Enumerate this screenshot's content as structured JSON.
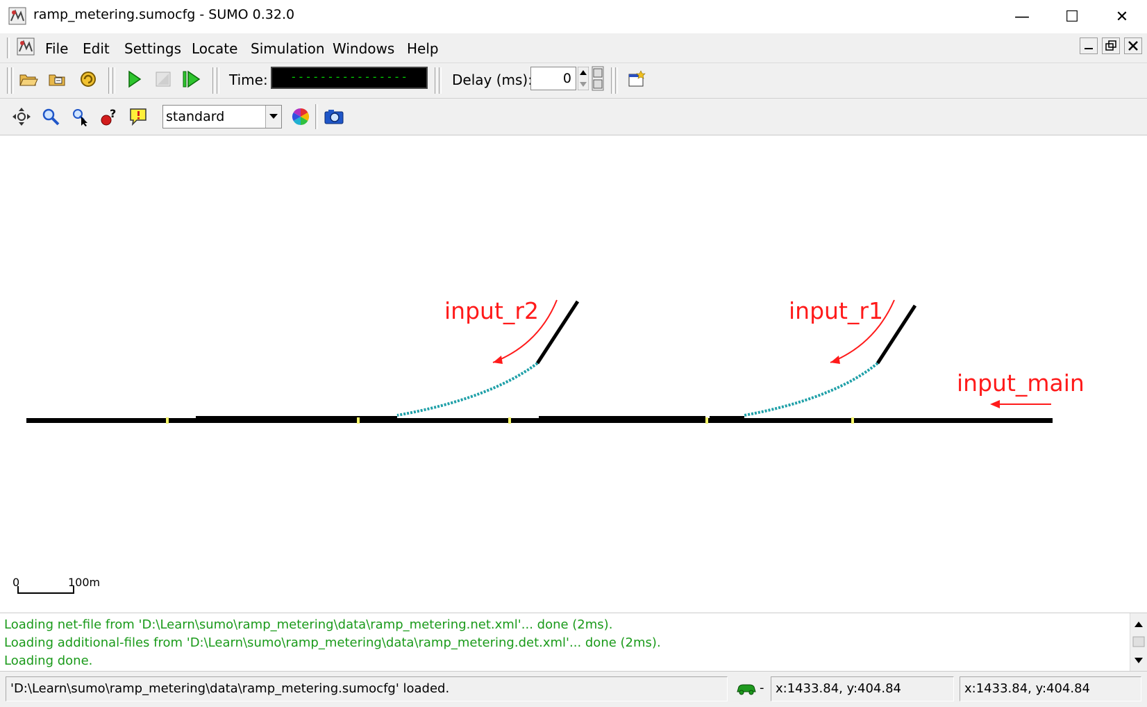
{
  "window": {
    "title": "ramp_metering.sumocfg - SUMO 0.32.0",
    "minimize_glyph": "—",
    "maximize_glyph": "☐",
    "close_glyph": "✕"
  },
  "menu": {
    "items": [
      "File",
      "Edit",
      "Settings",
      "Locate",
      "Simulation",
      "Windows",
      "Help"
    ]
  },
  "toolbar": {
    "time_label": "Time:",
    "time_value": "----------------",
    "delay_label": "Delay (ms):",
    "delay_value": "0"
  },
  "view_toolbar": {
    "scheme": "standard"
  },
  "canvas": {
    "annotations": {
      "input_r2": "input_r2",
      "input_r1": "input_r1",
      "input_main": "input_main"
    },
    "scale_bar": {
      "start": "0",
      "end": "100m"
    },
    "colors": {
      "road": "#000000",
      "ramp_lane": "#1fa0a8",
      "detector": "#f5f56a",
      "annotation": "#ff1a1a"
    }
  },
  "log": {
    "lines": [
      "Loading net-file from 'D:\\Learn\\sumo\\ramp_metering\\data\\ramp_metering.net.xml'... done (2ms).",
      "Loading additional-files from 'D:\\Learn\\sumo\\ramp_metering\\data\\ramp_metering.det.xml'... done (2ms).",
      "Loading done."
    ]
  },
  "status": {
    "message": "'D:\\Learn\\sumo\\ramp_metering\\data\\ramp_metering.sumocfg' loaded.",
    "vehicle_count": "-",
    "coords_1": "x:1433.84, y:404.84",
    "coords_2": "x:1433.84, y:404.84"
  }
}
